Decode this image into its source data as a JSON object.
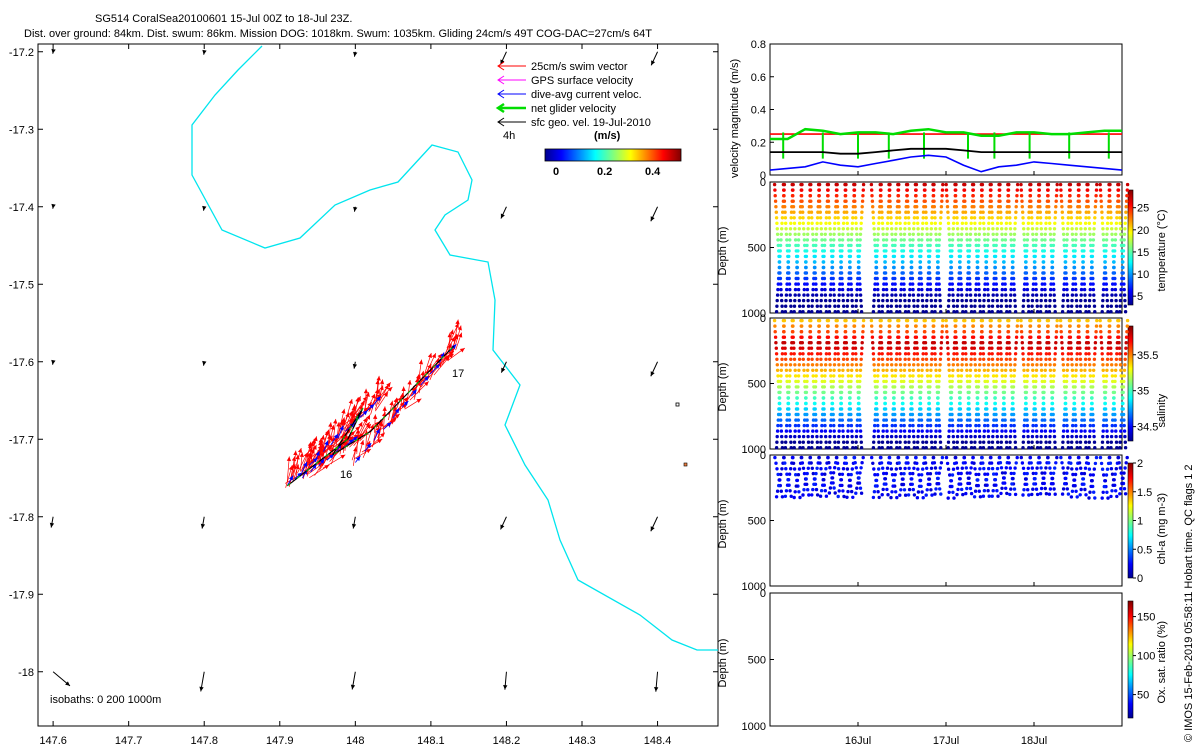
{
  "header": {
    "title_line1": "SG514 CoralSea20100601 15-Jul 00Z to 18-Jul 23Z.",
    "title_line2": "Dist. over ground: 84km. Dist. swum: 86km. Mission DOG: 1018km. Swum: 1035km. Gliding 24cm/s 49T COG-DAC=27cm/s 64T"
  },
  "map": {
    "xticks": [
      "147.6",
      "147.7",
      "147.8",
      "147.9",
      "148",
      "148.1",
      "148.2",
      "148.3",
      "148.4"
    ],
    "yticks": [
      "-17.2",
      "-17.3",
      "-17.4",
      "-17.5",
      "-17.6",
      "-17.7",
      "-17.8",
      "-17.9",
      "-18"
    ],
    "legend": [
      {
        "label": "25cm/s swim vector",
        "color": "#ff0000"
      },
      {
        "label": "GPS surface velocity",
        "color": "#ff00ff"
      },
      {
        "label": "dive-avg current veloc.",
        "color": "#0000ff"
      },
      {
        "label": "net glider velocity",
        "color": "#00dd00"
      },
      {
        "label": "sfc geo. vel. 19-Jul-2010",
        "color": "#000000"
      }
    ],
    "interval_label": "4h",
    "colorbar": {
      "label": "(m/s)",
      "ticks": [
        "0",
        "0.2",
        "0.4"
      ]
    },
    "isobaths": "isobaths: 0   200  1000m",
    "day_labels": [
      "16",
      "17"
    ],
    "coastline_color": "#00e5ee"
  },
  "panels": {
    "velocity": {
      "ylabel": "velocity magnitude (m/s)",
      "yticks": [
        "0",
        "0.2",
        "0.4",
        "0.6",
        "0.8"
      ]
    },
    "temperature": {
      "ylabel": "Depth (m)",
      "clabel": "temperature (°C)",
      "yticks": [
        "0",
        "500",
        "1000"
      ],
      "cticks": [
        "25",
        "20",
        "15",
        "10",
        "5"
      ]
    },
    "salinity": {
      "ylabel": "Depth (m)",
      "clabel": "salinity",
      "yticks": [
        "0",
        "500",
        "1000"
      ],
      "cticks": [
        "35.5",
        "35",
        "34.5"
      ]
    },
    "chla": {
      "ylabel": "Depth (m)",
      "clabel": "chl-a (mg m-3)",
      "yticks": [
        "0",
        "500",
        "1000"
      ],
      "cticks": [
        "2",
        "1.5",
        "1",
        "0.5",
        "0"
      ]
    },
    "oxygen": {
      "ylabel": "Depth (m)",
      "clabel": "Ox. sat. ratio (%)",
      "yticks": [
        "0",
        "500",
        "1000"
      ],
      "cticks": [
        "150",
        "100",
        "50"
      ]
    },
    "xticks": [
      "16Jul",
      "17Jul",
      "18Jul"
    ]
  },
  "footer": {
    "credit": "© IMOS 15-Feb-2019 05:58:11 Hobart time. QC flags 1  2"
  },
  "chart_data": [
    {
      "type": "scatter",
      "title": "SG514 CoralSea20100601 15-Jul 00Z to 18-Jul 23Z.",
      "xlim": [
        147.58,
        148.48
      ],
      "ylim": [
        -18.07,
        -17.19
      ],
      "series": [
        {
          "name": "net glider velocity",
          "x": [
            147.91,
            147.95,
            147.99,
            148.01,
            147.97,
            148.02,
            148.06,
            148.1,
            148.13
          ],
          "y": [
            -17.76,
            -17.73,
            -17.7,
            -17.66,
            -17.72,
            -17.69,
            -17.65,
            -17.61,
            -17.58
          ]
        }
      ]
    },
    {
      "type": "line",
      "ylabel": "velocity magnitude (m/s)",
      "ylim": [
        0,
        0.8
      ],
      "x_days": [
        15.0,
        15.2,
        15.4,
        15.6,
        15.8,
        16.0,
        16.2,
        16.4,
        16.6,
        16.8,
        17.0,
        17.2,
        17.4,
        17.6,
        17.8,
        18.0,
        18.2,
        18.4,
        18.6,
        18.8,
        19.0
      ],
      "series": [
        {
          "name": "25cm/s swim vector",
          "color": "#ff0000",
          "values": [
            0.25,
            0.25,
            0.25,
            0.25,
            0.25,
            0.25,
            0.25,
            0.25,
            0.25,
            0.25,
            0.25,
            0.25,
            0.25,
            0.25,
            0.25,
            0.25,
            0.25,
            0.25,
            0.25,
            0.25,
            0.25
          ]
        },
        {
          "name": "net glider velocity",
          "color": "#00dd00",
          "values": [
            0.22,
            0.22,
            0.28,
            0.27,
            0.25,
            0.26,
            0.26,
            0.25,
            0.27,
            0.28,
            0.26,
            0.26,
            0.24,
            0.24,
            0.26,
            0.26,
            0.25,
            0.25,
            0.26,
            0.27,
            0.27
          ]
        },
        {
          "name": "sfc geo. vel. 19-Jul-2010",
          "color": "#000000",
          "values": [
            0.14,
            0.14,
            0.14,
            0.14,
            0.13,
            0.13,
            0.14,
            0.15,
            0.16,
            0.16,
            0.16,
            0.15,
            0.14,
            0.14,
            0.14,
            0.14,
            0.14,
            0.14,
            0.14,
            0.14,
            0.14
          ]
        },
        {
          "name": "dive-avg current veloc.",
          "color": "#0000ff",
          "values": [
            0.03,
            0.04,
            0.05,
            0.08,
            0.06,
            0.05,
            0.07,
            0.09,
            0.11,
            0.12,
            0.11,
            0.06,
            0.02,
            0.05,
            0.06,
            0.08,
            0.07,
            0.06,
            0.05,
            0.04,
            0.03
          ]
        }
      ]
    },
    {
      "type": "scatter",
      "ylabel": "Depth (m)",
      "clabel": "temperature (°C)",
      "ylim": [
        1000,
        0
      ],
      "clim": [
        3,
        29
      ]
    },
    {
      "type": "scatter",
      "ylabel": "Depth (m)",
      "clabel": "salinity",
      "ylim": [
        1000,
        0
      ],
      "clim": [
        34.3,
        35.9
      ]
    },
    {
      "type": "scatter",
      "ylabel": "Depth (m)",
      "clabel": "chl-a (mg m-3)",
      "ylim": [
        1000,
        0
      ],
      "clim": [
        0,
        2
      ]
    },
    {
      "type": "scatter",
      "ylabel": "Depth (m)",
      "clabel": "Ox. sat. ratio (%)",
      "ylim": [
        1000,
        0
      ],
      "clim": [
        20,
        170
      ]
    }
  ]
}
